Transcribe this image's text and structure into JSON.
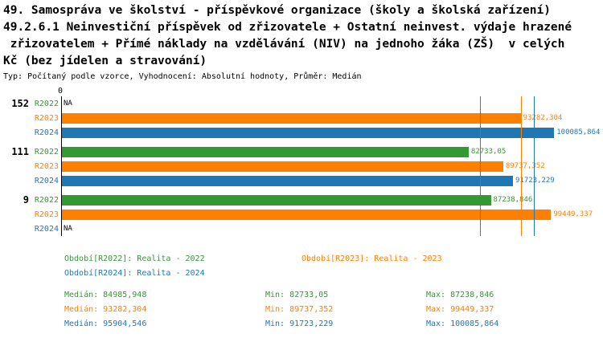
{
  "header": {
    "lines": [
      "49. Samospráva ve školství - příspěvkové organizace (školy a školská zařízení)",
      "49.2.6.1 Neinvestiční příspěvek od zřizovatele + Ostatní neinvest. výdaje hrazené",
      " zřizovatelem + Přímé náklady na vzdělávání (NIV) na jednoho žáka (ZŠ)  v celých",
      "Kč (bez jídelen a stravování)"
    ],
    "meta": "Typ: Počítaný podle vzorce, Vyhodnocení: Absolutní hodnoty, Průměr: Medián"
  },
  "chart_data": {
    "type": "bar",
    "orientation": "horizontal",
    "axis_zero_label": "0",
    "axis_max": 110000,
    "grid": false,
    "series_colors": {
      "R2022": "#339933",
      "R2023": "#ff8000",
      "R2024": "#1f77b4"
    },
    "groups": [
      {
        "label": "152",
        "bars": [
          {
            "series": "R2022",
            "value": null,
            "display": "NA"
          },
          {
            "series": "R2023",
            "value": 93282.304,
            "display": "93282,304"
          },
          {
            "series": "R2024",
            "value": 100085.864,
            "display": "100085,864"
          }
        ]
      },
      {
        "label": "111",
        "bars": [
          {
            "series": "R2022",
            "value": 82733.05,
            "display": "82733,05"
          },
          {
            "series": "R2023",
            "value": 89737.352,
            "display": "89737,352"
          },
          {
            "series": "R2024",
            "value": 91723.229,
            "display": "91723,229"
          }
        ]
      },
      {
        "label": "9",
        "bars": [
          {
            "series": "R2022",
            "value": 87238.846,
            "display": "87238,846"
          },
          {
            "series": "R2023",
            "value": 99449.337,
            "display": "99449,337"
          },
          {
            "series": "R2024",
            "value": null,
            "display": "NA"
          }
        ]
      }
    ],
    "medians": [
      {
        "series": "R2022",
        "value": 84985.948
      },
      {
        "series": "R2023",
        "value": 93282.304
      },
      {
        "series": "R2024",
        "value": 95904.546
      }
    ]
  },
  "legend": {
    "items": [
      {
        "series": "R2022",
        "text": "Období[R2022]: Realita - 2022"
      },
      {
        "series": "R2023",
        "text": "Období[R2023]: Realita - 2023"
      },
      {
        "series": "R2024",
        "text": "Období[R2024]: Realita - 2024"
      }
    ]
  },
  "stats": {
    "rows": [
      {
        "series": "R2022",
        "median": "Medián: 84985,948",
        "min": "Min: 82733,05",
        "max": "Max: 87238,846"
      },
      {
        "series": "R2023",
        "median": "Medián: 93282,304",
        "min": "Min: 89737,352",
        "max": "Max: 99449,337"
      },
      {
        "series": "R2024",
        "median": "Medián: 95904,546",
        "min": "Min: 91723,229",
        "max": "Max: 100085,864"
      }
    ]
  }
}
